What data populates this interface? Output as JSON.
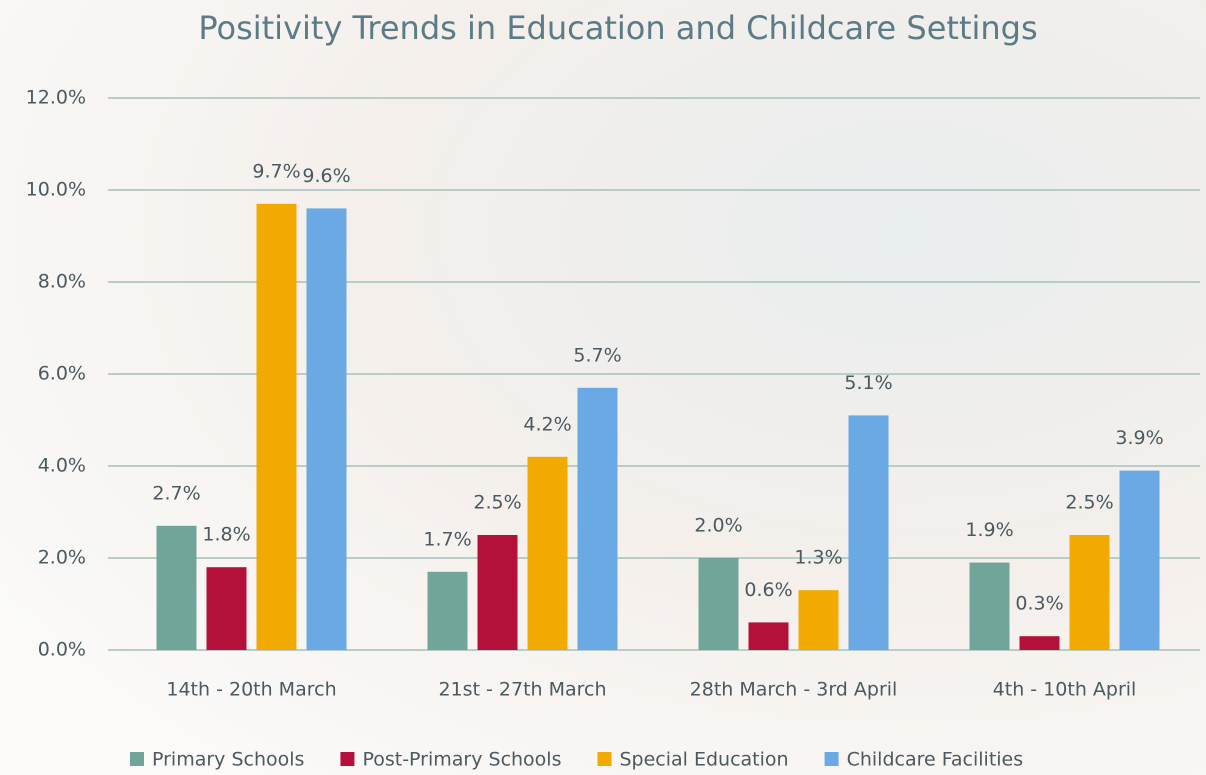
{
  "chart_data": {
    "type": "bar",
    "title": "Positivity Trends in Education and Childcare Settings",
    "categories": [
      "14th - 20th March",
      "21st - 27th March",
      "28th March - 3rd April",
      "4th - 10th April"
    ],
    "series": [
      {
        "name": "Primary Schools",
        "color": "#72a59a",
        "values": [
          2.7,
          1.7,
          2.0,
          1.9
        ],
        "value_labels": [
          "2.7%",
          "1.7%",
          "2.0%",
          "1.9%"
        ]
      },
      {
        "name": "Post-Primary Schools",
        "color": "#b5103a",
        "values": [
          1.8,
          2.5,
          0.6,
          0.3
        ],
        "value_labels": [
          "1.8%",
          "2.5%",
          "0.6%",
          "0.3%"
        ]
      },
      {
        "name": "Special Education",
        "color": "#f2a900",
        "values": [
          9.7,
          4.2,
          1.3,
          2.5
        ],
        "value_labels": [
          "9.7%",
          "4.2%",
          "1.3%",
          "2.5%"
        ]
      },
      {
        "name": "Childcare Facilities",
        "color": "#6aa9e3",
        "values": [
          9.6,
          5.7,
          5.1,
          3.9
        ],
        "value_labels": [
          "9.6%",
          "5.7%",
          "5.1%",
          "3.9%"
        ]
      }
    ],
    "ylim": [
      0,
      12
    ],
    "yticks": [
      {
        "value": 0,
        "label": "0.0%"
      },
      {
        "value": 2,
        "label": "2.0%"
      },
      {
        "value": 4,
        "label": "4.0%"
      },
      {
        "value": 6,
        "label": "6.0%"
      },
      {
        "value": 8,
        "label": "8.0%"
      },
      {
        "value": 10,
        "label": "10.0%"
      },
      {
        "value": 12,
        "label": "12.0%"
      }
    ],
    "grid": true,
    "legend": "bottom"
  }
}
